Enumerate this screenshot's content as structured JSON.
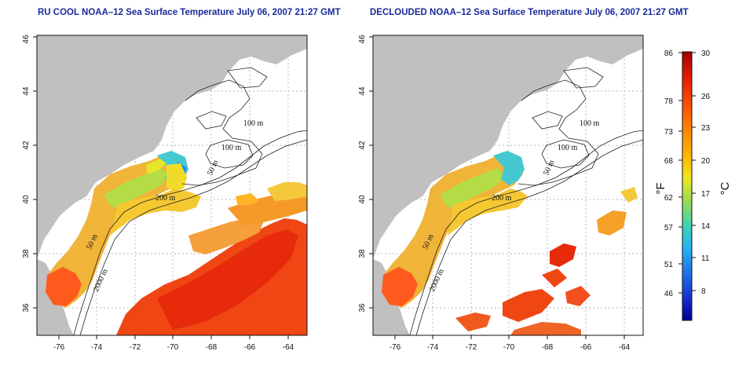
{
  "panels": [
    {
      "title": "RU COOL NOAA–12 Sea Surface Temperature July 06, 2007 21:27 GMT",
      "variant": "cloudy"
    },
    {
      "title": "DECLOUDED NOAA–12 Sea Surface Temperature July 06, 2007 21:27 GMT",
      "variant": "declouded"
    }
  ],
  "x_ticks": [
    "-76",
    "-74",
    "-72",
    "-70",
    "-68",
    "-66",
    "-64"
  ],
  "y_ticks": [
    "36",
    "38",
    "40",
    "42",
    "44",
    "46"
  ],
  "contour_labels": [
    "100 m",
    "100 m",
    "50 m",
    "200 m",
    "50 m",
    "2000 m"
  ],
  "colorbar": {
    "fahrenheit_ticks": [
      "86",
      "78",
      "73",
      "68",
      "62",
      "57",
      "51",
      "46"
    ],
    "celsius_ticks": [
      "30",
      "26",
      "23",
      "20",
      "17",
      "14",
      "11",
      "8"
    ],
    "fahrenheit_unit": "°F",
    "celsius_unit": "°C",
    "colors": [
      "#ff0000",
      "#ff5a00",
      "#ffa500",
      "#ffd700",
      "#c8e632",
      "#5cd28c",
      "#28b4e6",
      "#1e64d2",
      "#0000a0"
    ]
  },
  "colors": {
    "land": "#c0c0c0",
    "title": "#1a2a9a",
    "grid": "#9a9a9a"
  }
}
